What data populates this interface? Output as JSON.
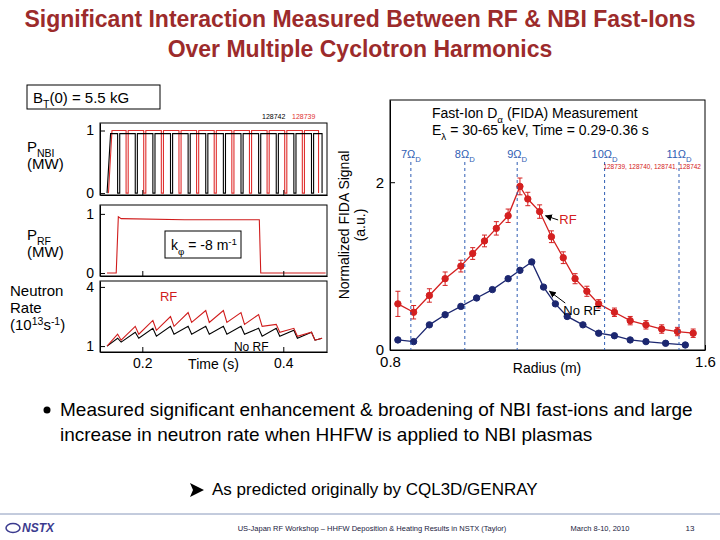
{
  "slide": {
    "title": "Significant Interaction Measured Between RF & NBI Fast-Ions Over Multiple Cyclotron Harmonics",
    "bt_label": "BT(0) = 5.5 kG",
    "bullet": "Measured significant enhancement & broadening of NBI fast-ions and large increase in neutron rate when HHFW is applied to NBI plasmas",
    "sub_bullet": "As predicted originally by CQL3D/GENRAY",
    "footer": {
      "logo": "NSTX",
      "text": "US-Japan RF Workshop – HHFW Deposition & Heating Results in NSTX (Taylor)",
      "date": "March 8-10, 2010",
      "page": 13
    }
  },
  "chart_data": [
    {
      "type": "line",
      "y_label": [
        "PNBI",
        "(MW)"
      ],
      "xlim": [
        0.14,
        0.462
      ],
      "ylim": [
        -0.03,
        1.12
      ],
      "xticks": [
        0.2,
        0.4
      ],
      "yticks": [
        0,
        1
      ],
      "tick_labels": "y",
      "series": [
        {
          "name": "128742",
          "color": "#000000",
          "x": [
            0.15,
            0.155,
            0.165,
            0.165,
            0.168,
            0.168,
            0.19,
            0.19,
            0.193,
            0.193,
            0.215,
            0.215,
            0.218,
            0.218,
            0.24,
            0.24,
            0.243,
            0.243,
            0.265,
            0.265,
            0.268,
            0.268,
            0.29,
            0.29,
            0.293,
            0.293,
            0.315,
            0.315,
            0.318,
            0.318,
            0.34,
            0.34,
            0.343,
            0.343,
            0.365,
            0.365,
            0.368,
            0.368,
            0.39,
            0.39,
            0.393,
            0.393,
            0.415,
            0.415,
            0.418,
            0.418,
            0.44,
            0.44,
            0.443,
            0.443,
            0.455,
            0.455
          ],
          "values": [
            0,
            0.95,
            0.95,
            0,
            0,
            0.95,
            0.95,
            0,
            0,
            0.95,
            0.95,
            0,
            0,
            0.95,
            0.95,
            0,
            0,
            0.95,
            0.95,
            0,
            0,
            0.95,
            0.95,
            0,
            0,
            0.95,
            0.95,
            0,
            0,
            0.95,
            0.95,
            0,
            0,
            0.95,
            0.95,
            0,
            0,
            0.95,
            0.95,
            0,
            0,
            0.95,
            0.95,
            0,
            0,
            0.95,
            0.95,
            0,
            0,
            0.95,
            0.95,
            0
          ]
        },
        {
          "name": "128739",
          "color": "#e0302f",
          "x": [
            0.152,
            0.157,
            0.177,
            0.177,
            0.18,
            0.18,
            0.202,
            0.202,
            0.205,
            0.205,
            0.227,
            0.227,
            0.23,
            0.23,
            0.252,
            0.252,
            0.255,
            0.255,
            0.277,
            0.277,
            0.28,
            0.28,
            0.302,
            0.302,
            0.305,
            0.305,
            0.327,
            0.327,
            0.33,
            0.33,
            0.352,
            0.352,
            0.355,
            0.355,
            0.377,
            0.377,
            0.38,
            0.38,
            0.402,
            0.402,
            0.405,
            0.405,
            0.427,
            0.427,
            0.43,
            0.43,
            0.45,
            0.45
          ],
          "values": [
            0,
            1,
            1,
            0,
            0,
            1,
            1,
            0,
            0,
            1,
            1,
            0,
            0,
            1,
            1,
            0,
            0,
            1,
            1,
            0,
            0,
            1,
            1,
            0,
            0,
            1,
            1,
            0,
            0,
            1,
            1,
            0,
            0,
            1,
            1,
            0,
            0,
            1,
            1,
            0,
            0,
            1,
            1,
            0,
            0,
            1,
            1,
            0
          ]
        }
      ]
    },
    {
      "type": "line",
      "y_label": [
        "PRF",
        "(MW)"
      ],
      "annotation": "kφ = -8 m-1",
      "xlim": [
        0.14,
        0.462
      ],
      "ylim": [
        -0.05,
        1.15
      ],
      "xticks": [
        0.2,
        0.4
      ],
      "yticks": [
        0,
        1
      ],
      "tick_labels": "y",
      "series": [
        {
          "color": "#d01c1c",
          "x": [
            0.15,
            0.163,
            0.166,
            0.17,
            0.26,
            0.366,
            0.368,
            0.46
          ],
          "values": [
            0,
            0,
            0.95,
            0.92,
            0.9,
            0.9,
            0,
            0
          ]
        }
      ]
    },
    {
      "type": "line",
      "y_label": [
        "Neutron",
        "Rate",
        "(1013s-1)"
      ],
      "x_label": "Time (s)",
      "xlim": [
        0.14,
        0.462
      ],
      "ylim": [
        0.7,
        4.3
      ],
      "xticks": [
        0.2,
        0.4
      ],
      "yticks": [
        1,
        4
      ],
      "series": [
        {
          "name": "RF",
          "color": "#d01c1c",
          "x": [
            0.15,
            0.165,
            0.17,
            0.19,
            0.195,
            0.215,
            0.22,
            0.24,
            0.245,
            0.265,
            0.27,
            0.29,
            0.295,
            0.315,
            0.32,
            0.34,
            0.345,
            0.365,
            0.37,
            0.39,
            0.395,
            0.415,
            0.42,
            0.44,
            0.445,
            0.455
          ],
          "values": [
            1.0,
            1.6,
            1.3,
            2.0,
            1.6,
            2.3,
            1.8,
            2.5,
            2.0,
            2.7,
            2.2,
            2.8,
            2.2,
            2.8,
            2.2,
            2.7,
            2.1,
            2.6,
            2.0,
            2.1,
            1.7,
            1.9,
            1.5,
            1.7,
            1.3,
            1.4
          ]
        },
        {
          "name": "No RF",
          "color": "#000000",
          "x": [
            0.15,
            0.165,
            0.17,
            0.19,
            0.195,
            0.215,
            0.22,
            0.24,
            0.245,
            0.265,
            0.27,
            0.29,
            0.295,
            0.315,
            0.32,
            0.34,
            0.345,
            0.365,
            0.37,
            0.39,
            0.395,
            0.415,
            0.42,
            0.44,
            0.445,
            0.455
          ],
          "values": [
            1.0,
            1.4,
            1.2,
            1.7,
            1.4,
            1.9,
            1.5,
            2.0,
            1.6,
            2.0,
            1.6,
            2.0,
            1.6,
            2.0,
            1.6,
            2.0,
            1.6,
            1.9,
            1.5,
            1.9,
            1.5,
            1.8,
            1.4,
            1.7,
            1.3,
            1.4
          ]
        }
      ]
    },
    {
      "type": "line",
      "marker": "circle",
      "title": "Fast-Ion Dα (FIDA) Measurement",
      "subtitle": "Eλ = 30-65 keV, Time = 0.29-0.36 s",
      "x_label": "Radius (m)",
      "y_label": [
        "Normalized FIDA Signal",
        "(a.u.)"
      ],
      "shots": "128739, 128740, 128741, 128742",
      "xlim": [
        0.8,
        1.6
      ],
      "ylim": [
        0,
        2.98
      ],
      "xticks": [
        0.8,
        1.6
      ],
      "yticks": [
        0,
        2
      ],
      "harmonics": {
        "labels": [
          "7ΩD",
          "8ΩD",
          "9ΩD",
          "10ΩD",
          "11ΩD"
        ],
        "values": [
          0.853,
          0.99,
          1.123,
          1.345,
          1.534
        ],
        "color": "#2f5db3"
      },
      "series": [
        {
          "name": "RF",
          "color": "#d42020",
          "x": [
            0.82,
            0.86,
            0.9,
            0.94,
            0.98,
            1.01,
            1.04,
            1.07,
            1.1,
            1.13,
            1.15,
            1.18,
            1.21,
            1.24,
            1.27,
            1.3,
            1.33,
            1.37,
            1.41,
            1.45,
            1.49,
            1.53,
            1.57
          ],
          "values": [
            0.55,
            0.45,
            0.65,
            0.85,
            1.0,
            1.15,
            1.3,
            1.45,
            1.6,
            1.95,
            1.8,
            1.65,
            1.35,
            1.1,
            0.85,
            0.7,
            0.55,
            0.45,
            0.35,
            0.3,
            0.25,
            0.22,
            0.2
          ],
          "errors": [
            0.15,
            0.08,
            0.08,
            0.08,
            0.07,
            0.07,
            0.07,
            0.08,
            0.08,
            0.1,
            0.08,
            0.08,
            0.07,
            0.07,
            0.06,
            0.06,
            0.05,
            0.05,
            0.05,
            0.05,
            0.05,
            0.05,
            0.05
          ]
        },
        {
          "name": "No RF",
          "color": "#1c2770",
          "x": [
            0.82,
            0.86,
            0.9,
            0.94,
            0.98,
            1.02,
            1.06,
            1.1,
            1.13,
            1.16,
            1.19,
            1.22,
            1.25,
            1.29,
            1.33,
            1.37,
            1.41,
            1.45,
            1.5,
            1.55
          ],
          "values": [
            0.12,
            0.1,
            0.3,
            0.42,
            0.52,
            0.62,
            0.72,
            0.85,
            0.95,
            1.05,
            0.75,
            0.55,
            0.4,
            0.3,
            0.2,
            0.17,
            0.12,
            0.1,
            0.08,
            0.06
          ]
        }
      ]
    }
  ]
}
